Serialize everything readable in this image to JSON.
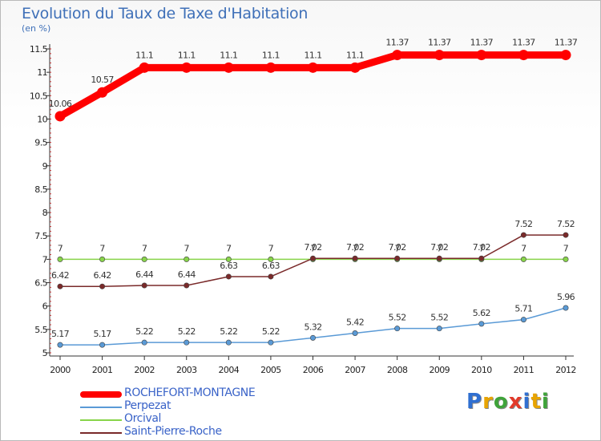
{
  "title": "Evolution du Taux de Taxe d'Habitation",
  "subtitle": "(en %)",
  "logo": {
    "letters": [
      "P",
      "r",
      "o",
      "x",
      "i",
      "t",
      "i"
    ],
    "colors": [
      "#2f6fd1",
      "#e8a400",
      "#3fa33a",
      "#e23a2a",
      "#2f6fd1",
      "#e8a400",
      "#3fa33a"
    ]
  },
  "chart_data": {
    "type": "line",
    "title": "Evolution du Taux de Taxe d'Habitation",
    "ylabel": "(en %)",
    "xlabel": "",
    "x": [
      "2000",
      "2001",
      "2002",
      "2003",
      "2004",
      "2005",
      "2006",
      "2007",
      "2008",
      "2009",
      "2010",
      "2011",
      "2012"
    ],
    "ylim": [
      5,
      11.5
    ],
    "yticks": [
      "5",
      "5.5",
      "6",
      "6.5",
      "7",
      "7.5",
      "8",
      "8.5",
      "9",
      "9.5",
      "10",
      "10.5",
      "11",
      "11.5"
    ],
    "series": [
      {
        "name": "ROCHEFORT-MONTAGNE",
        "color": "#ff0000",
        "values": [
          10.06,
          10.57,
          11.1,
          11.1,
          11.1,
          11.1,
          11.1,
          11.1,
          11.37,
          11.37,
          11.37,
          11.37,
          11.37
        ],
        "labels": [
          "10.06",
          "10.57",
          "11.1",
          "11.1",
          "11.1",
          "11.1",
          "11.1",
          "11.1",
          "11.37",
          "11.37",
          "11.37",
          "11.37",
          "11.37"
        ]
      },
      {
        "name": "Perpezat",
        "color": "#5a9ad6",
        "values": [
          5.17,
          5.17,
          5.22,
          5.22,
          5.22,
          5.22,
          5.32,
          5.42,
          5.52,
          5.52,
          5.62,
          5.71,
          5.96
        ],
        "labels": [
          "5.17",
          "5.17",
          "5.22",
          "5.22",
          "5.22",
          "5.22",
          "5.32",
          "5.42",
          "5.52",
          "5.52",
          "5.62",
          "5.71",
          "5.96"
        ]
      },
      {
        "name": "Orcival",
        "color": "#88d44a",
        "values": [
          7,
          7,
          7,
          7,
          7,
          7,
          7,
          7,
          7,
          7,
          7,
          7,
          7
        ],
        "labels": [
          "7",
          "7",
          "7",
          "7",
          "7",
          "7",
          "7",
          "7",
          "7",
          "7",
          "7",
          "7",
          "7"
        ]
      },
      {
        "name": "Saint-Pierre-Roche",
        "color": "#7a2a2a",
        "values": [
          6.42,
          6.42,
          6.44,
          6.44,
          6.63,
          6.63,
          7.02,
          7.02,
          7.02,
          7.02,
          7.02,
          7.52,
          7.52
        ],
        "labels": [
          "6.42",
          "6.42",
          "6.44",
          "6.44",
          "6.63",
          "6.63",
          "7.02",
          "7.02",
          "7.02",
          "7.02",
          "7.02",
          "7.52",
          "7.52"
        ]
      }
    ],
    "legend": "bottom-left"
  }
}
